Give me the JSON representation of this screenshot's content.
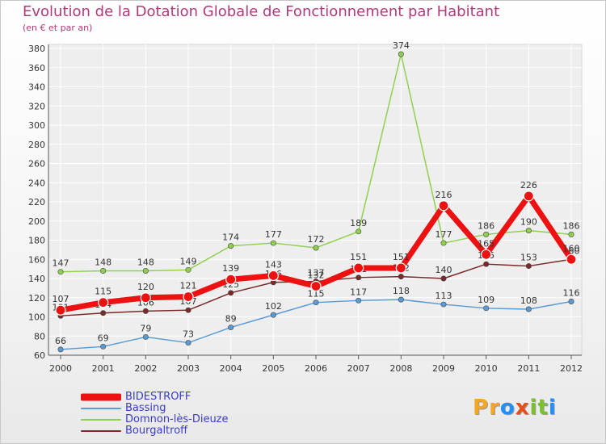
{
  "header": {
    "title": "Evolution de la Dotation Globale de Fonctionnement par Habitant",
    "subtitle": "(en € et par an)"
  },
  "chart_data": {
    "type": "line",
    "x": [
      "2000",
      "2001",
      "2002",
      "2003",
      "2004",
      "2005",
      "2006",
      "2007",
      "2008",
      "2009",
      "2010",
      "2011",
      "2012"
    ],
    "ylim": [
      60,
      380
    ],
    "yticks": [
      60,
      80,
      100,
      120,
      140,
      160,
      180,
      200,
      220,
      240,
      260,
      280,
      300,
      320,
      340,
      360,
      380
    ],
    "grid": true,
    "legend_position": "bottom-left",
    "series": [
      {
        "name": "Domnon-lès-Dieuze",
        "color": "#8fd14f",
        "values": [
          147,
          148,
          148,
          149,
          174,
          177,
          172,
          189,
          374,
          177,
          186,
          190,
          186
        ]
      },
      {
        "name": "Bassing",
        "color": "#5b9bd5",
        "values": [
          66,
          69,
          79,
          73,
          89,
          102,
          115,
          117,
          118,
          113,
          109,
          108,
          116
        ]
      },
      {
        "name": "Bourgaltroff",
        "color": "#7a2a2a",
        "values": [
          101,
          104,
          106,
          107,
          125,
          136,
          137,
          141,
          142,
          140,
          155,
          153,
          160
        ]
      },
      {
        "name": "BIDESTROFF",
        "color": "#ee1111",
        "values": [
          107,
          115,
          120,
          121,
          139,
          143,
          132,
          151,
          151,
          216,
          165,
          226,
          160
        ]
      }
    ]
  },
  "legend": {
    "items": [
      {
        "label": "BIDESTROFF",
        "color": "#ee1111"
      },
      {
        "label": "Bassing",
        "color": "#5b9bd5"
      },
      {
        "label": "Domnon-lès-Dieuze",
        "color": "#8fd14f"
      },
      {
        "label": "Bourgaltroff",
        "color": "#7a2a2a"
      }
    ]
  },
  "logo": {
    "letters": [
      "P",
      "r",
      "o",
      "x",
      "i",
      "t",
      "i"
    ]
  }
}
